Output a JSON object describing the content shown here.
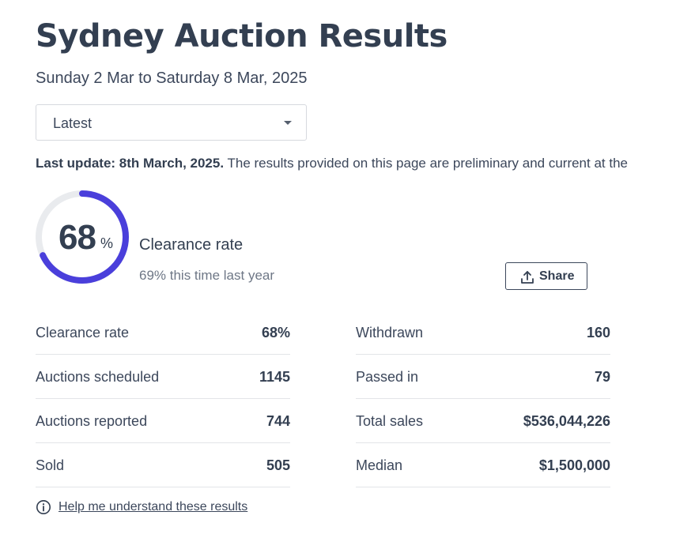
{
  "header": {
    "title": "Sydney Auction Results",
    "date_range": "Sunday 2 Mar to Saturday 8 Mar, 2025"
  },
  "period_select": {
    "selected": "Latest"
  },
  "update_notice": {
    "label": "Last update: 8th March, 2025.",
    "text": " The results provided on this page are preliminary and current at the"
  },
  "clearance": {
    "rate": 68,
    "rate_number": "68",
    "rate_suffix": "%",
    "label": "Clearance rate",
    "last_year": "69% this time last year",
    "ring_color": "#4a3fdb",
    "track_color": "#e9ebee"
  },
  "share": {
    "label": "Share",
    "icon": "share-upload-icon"
  },
  "stats_left": [
    {
      "label": "Clearance rate",
      "value": "68%"
    },
    {
      "label": "Auctions scheduled",
      "value": "1145"
    },
    {
      "label": "Auctions reported",
      "value": "744"
    },
    {
      "label": "Sold",
      "value": "505"
    }
  ],
  "stats_right": [
    {
      "label": "Withdrawn",
      "value": "160"
    },
    {
      "label": "Passed in",
      "value": "79"
    },
    {
      "label": "Total sales",
      "value": "$536,044,226"
    },
    {
      "label": "Median",
      "value": "$1,500,000"
    }
  ],
  "help": {
    "label": "Help me understand these results",
    "icon": "info-icon"
  }
}
